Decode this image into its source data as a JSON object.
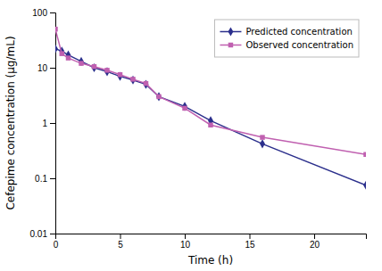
{
  "chart_data": {
    "type": "line",
    "x": [
      0,
      0.5,
      1,
      2,
      3,
      4,
      5,
      6,
      7,
      8,
      10,
      12,
      16,
      24
    ],
    "series": [
      {
        "name": "Predicted concentration",
        "color": "#2b2f8c",
        "marker": "diamond",
        "values": [
          22,
          20,
          17,
          13,
          10,
          8.5,
          7.0,
          6.0,
          5.0,
          3.0,
          2.0,
          1.1,
          0.42,
          0.075
        ]
      },
      {
        "name": "Observed concentration",
        "color": "#c060b0",
        "marker": "square",
        "values": [
          50,
          18,
          15,
          12,
          10.5,
          9.0,
          7.5,
          6.2,
          5.2,
          3.0,
          1.85,
          0.92,
          0.55,
          0.27
        ]
      }
    ],
    "xlabel": "Time (h)",
    "ylabel": "Cefepime concentration (μg/mL)",
    "log": "y",
    "xlim": [
      0,
      24
    ],
    "ylim": [
      0.01,
      100
    ],
    "xticks": [
      0,
      5,
      10,
      15,
      20
    ],
    "yticks": [
      0.01,
      0.1,
      1,
      10,
      100
    ],
    "grid": false,
    "legend": "upper right"
  }
}
